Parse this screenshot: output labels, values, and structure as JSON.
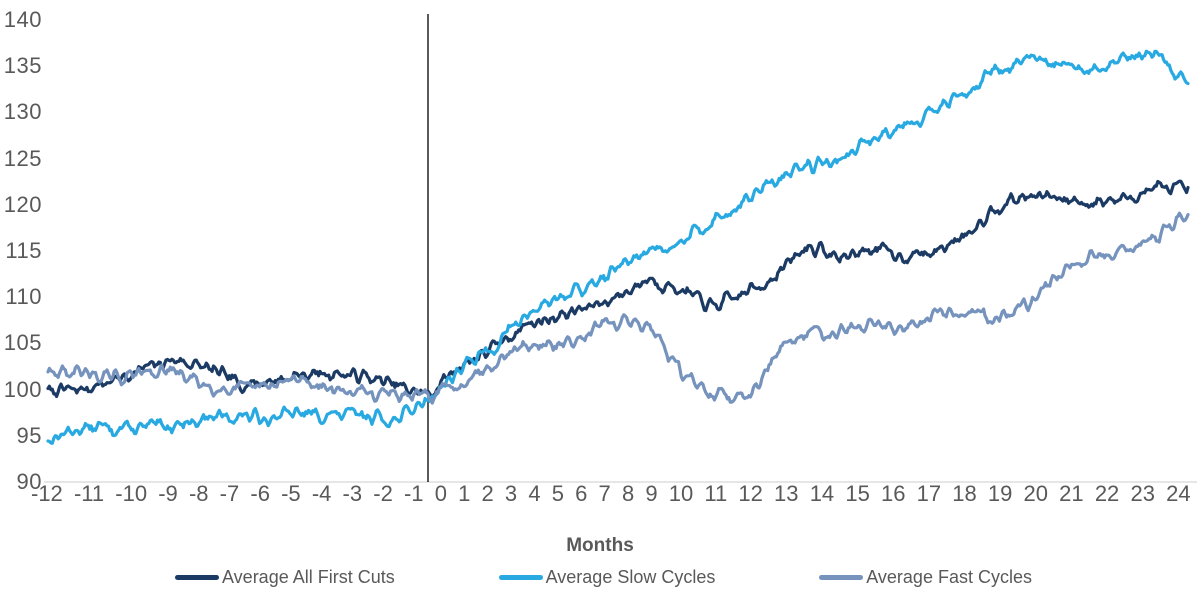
{
  "chart_data": {
    "type": "line",
    "title": "",
    "xlabel": "Months",
    "x_range": [
      -12,
      24
    ],
    "x_tick_labels": [
      "-12",
      "-11",
      "-10",
      "-9",
      "-8",
      "-7",
      "-6",
      "-5",
      "-4",
      "-3",
      "-2",
      "-1",
      "0",
      "1",
      "2",
      "3",
      "4",
      "5",
      "6",
      "7",
      "8",
      "9",
      "10",
      "11",
      "12",
      "13",
      "14",
      "15",
      "16",
      "17",
      "18",
      "19",
      "20",
      "21",
      "22",
      "23",
      "24"
    ],
    "ylim": [
      90,
      140
    ],
    "y_ticks": [
      140,
      135,
      130,
      125,
      120,
      115,
      110,
      105,
      100,
      95,
      90
    ],
    "grid": "none",
    "reference_line_x": 0,
    "legend_position": "bottom",
    "series": [
      {
        "name": "Average All First Cuts",
        "color": "#1B3A64",
        "months": "monthly values from -12 to 24",
        "values": [
          99.8,
          100.0,
          100.9,
          102.2,
          103.3,
          102.3,
          100.7,
          100.9,
          101.6,
          101.8,
          101.4,
          100.4,
          99.4,
          102.6,
          104.3,
          106.9,
          107.9,
          108.8,
          110.1,
          112.1,
          110.7,
          108.9,
          110.4,
          112.4,
          115.6,
          114.2,
          115.3,
          114.5,
          114.8,
          117.0,
          120.0,
          121.0,
          120.6,
          120.3,
          120.6,
          121.9,
          121.4
        ]
      },
      {
        "name": "Average Slow Cycles",
        "color": "#29A9E1",
        "months": "monthly values from -12 to 24",
        "values": [
          94.6,
          95.8,
          95.9,
          95.7,
          96.3,
          96.9,
          97.1,
          97.1,
          97.4,
          97.2,
          97.3,
          96.7,
          99.0,
          102.2,
          104.4,
          107.8,
          109.9,
          110.9,
          113.2,
          115.3,
          116.1,
          118.2,
          120.4,
          122.6,
          124.3,
          124.7,
          127.2,
          128.8,
          130.0,
          132.4,
          134.7,
          135.6,
          134.9,
          134.3,
          135.6,
          136.5,
          133.0
        ]
      },
      {
        "name": "Average Fast Cycles",
        "color": "#7593BD",
        "months": "monthly values from -12 to 24",
        "values": [
          101.6,
          102.1,
          101.1,
          101.9,
          101.9,
          100.5,
          99.9,
          100.3,
          101.2,
          100.0,
          99.6,
          99.4,
          99.2,
          100.7,
          102.9,
          104.8,
          104.6,
          106.2,
          107.3,
          107.0,
          101.8,
          99.4,
          99.1,
          103.5,
          106.3,
          106.4,
          106.9,
          106.7,
          108.5,
          108.3,
          108.1,
          109.2,
          112.9,
          114.4,
          115.3,
          116.3,
          119.0
        ]
      }
    ]
  },
  "style": {
    "background": "#FFFFFF",
    "axis_text_color": "#595959",
    "axis_line_color": "#D6D6D6",
    "reference_line_color": "#000000"
  }
}
